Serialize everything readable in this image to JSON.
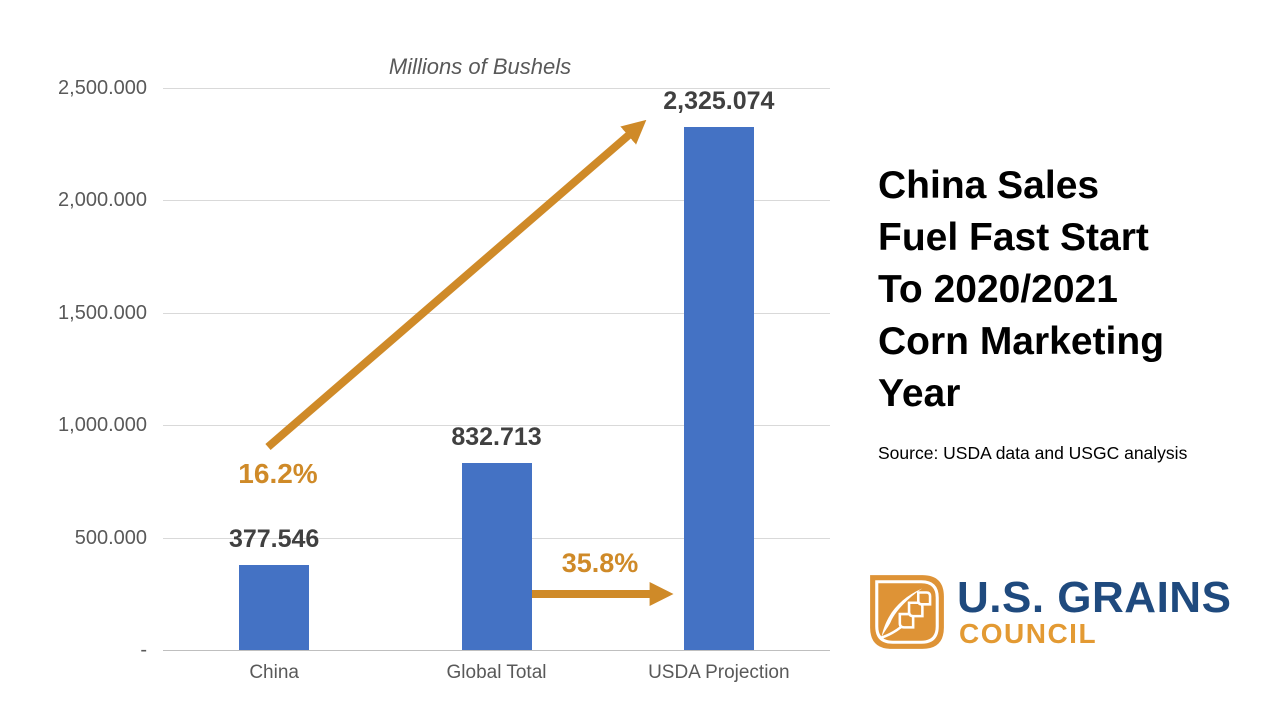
{
  "chart_data": {
    "type": "bar",
    "title": "Millions of Bushels",
    "categories": [
      "China",
      "Global Total",
      "USDA Projection"
    ],
    "values": [
      377.546,
      832.713,
      2325.074
    ],
    "value_labels": [
      "377.546",
      "832.713",
      "2,325.074"
    ],
    "ylim": [
      0,
      2500
    ],
    "grid": true,
    "y_ticks": [
      {
        "value": 0,
        "label": "-"
      },
      {
        "value": 500,
        "label": "500.000"
      },
      {
        "value": 1000,
        "label": "1,000.000"
      },
      {
        "value": 1500,
        "label": "1,500.000"
      },
      {
        "value": 2000,
        "label": "2,000.000"
      },
      {
        "value": 2500,
        "label": "2,500.000"
      }
    ],
    "bar_color": "#4472c4",
    "annotations": [
      {
        "label": "16.2%",
        "from": "China",
        "to": "USDA Projection",
        "style": "diagonal-arrow"
      },
      {
        "label": "35.8%",
        "from": "Global Total",
        "to": "USDA Projection",
        "style": "horizontal-arrow"
      }
    ],
    "annotation_color": "#cf8a28"
  },
  "panel": {
    "title": "China Sales Fuel Fast Start To 2020/2021 Corn Marketing Year",
    "title_lines": [
      "China Sales",
      "Fuel Fast Start",
      "To 2020/2021",
      "Corn Marketing",
      "Year"
    ],
    "source": "Source: USDA data and USGC analysis"
  },
  "logo": {
    "org_name": "U.S. GRAINS",
    "org_subname": "COUNCIL",
    "navy": "#1f4a7e",
    "orange": "#e39a33",
    "icon": "grain-leaf-icon"
  }
}
